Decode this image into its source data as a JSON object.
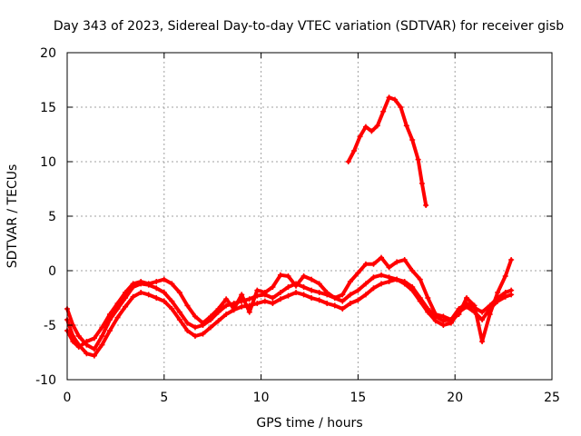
{
  "chart_data": {
    "type": "line",
    "title": "Day 343 of 2023, Sidereal Day-to-day VTEC variation (SDTVAR) for receiver gisb",
    "xlabel": "GPS time / hours",
    "ylabel": "SDTVAR / TECUs",
    "xlim": [
      0,
      25
    ],
    "ylim": [
      -10,
      20
    ],
    "xticks": [
      0,
      5,
      10,
      15,
      20,
      25
    ],
    "yticks": [
      -10,
      -5,
      0,
      5,
      10,
      15,
      20
    ],
    "xtick_labels": [
      "0",
      "5",
      "10",
      "15",
      "20",
      "25"
    ],
    "ytick_labels": [
      "-10",
      "-5",
      "0",
      "5",
      "10",
      "15",
      "20"
    ],
    "grid": true,
    "color": "#ff0000",
    "series": [
      {
        "name": "track-a",
        "x": [
          0,
          0.3,
          0.6,
          1.0,
          1.4,
          1.8,
          2.2,
          2.6,
          3.0,
          3.4,
          3.8,
          4.2,
          4.6,
          5.0,
          5.4,
          5.8,
          6.2,
          6.6,
          7.0,
          7.4,
          7.8,
          8.2,
          8.6,
          9.0,
          9.4,
          9.8,
          10.2,
          10.6,
          11.0,
          11.4,
          11.8,
          12.2,
          12.6,
          13.0,
          13.4,
          13.8,
          14.2,
          14.6,
          15.0,
          15.4,
          15.8,
          16.2,
          16.6,
          17.0,
          17.4,
          17.8,
          18.2,
          18.6,
          19.0,
          19.4,
          19.8,
          20.2,
          20.6,
          21.0,
          21.4,
          21.8,
          22.2,
          22.6,
          22.9
        ],
        "y": [
          -3.5,
          -5.0,
          -6.0,
          -6.8,
          -7.2,
          -6.0,
          -4.5,
          -3.5,
          -2.5,
          -1.5,
          -1.2,
          -1.3,
          -1.6,
          -2.0,
          -2.8,
          -3.8,
          -4.8,
          -5.2,
          -5.0,
          -4.5,
          -3.8,
          -3.2,
          -3.0,
          -2.8,
          -2.6,
          -2.3,
          -2.2,
          -2.5,
          -2.0,
          -1.5,
          -1.2,
          -1.5,
          -1.8,
          -2.0,
          -2.2,
          -2.5,
          -2.8,
          -2.2,
          -1.8,
          -1.2,
          -0.6,
          -0.4,
          -0.6,
          -0.8,
          -1.0,
          -1.5,
          -2.5,
          -3.5,
          -4.2,
          -4.6,
          -4.5,
          -3.5,
          -3.0,
          -3.4,
          -3.8,
          -3.2,
          -2.5,
          -2.0,
          -1.8
        ]
      },
      {
        "name": "track-b",
        "x": [
          0,
          0.3,
          0.6,
          1.0,
          1.4,
          1.8,
          2.2,
          2.6,
          3.0,
          3.4,
          3.8,
          4.2,
          4.6,
          5.0,
          5.4,
          5.8,
          6.2,
          6.6,
          7.0,
          7.4,
          7.8,
          8.2,
          8.6,
          9.0,
          9.4,
          9.8,
          10.2,
          10.6,
          11.0,
          11.4,
          11.8,
          12.2,
          12.6,
          13.0,
          13.4,
          13.8,
          14.2,
          14.6,
          15.0,
          15.4,
          15.8,
          16.2,
          16.6,
          17.0,
          17.4,
          17.8,
          18.2,
          18.6,
          19.0,
          19.4,
          19.8,
          20.2,
          20.6,
          21.0,
          21.4,
          21.8,
          22.2,
          22.6,
          22.9
        ],
        "y": [
          -4.5,
          -6.0,
          -6.8,
          -7.6,
          -7.8,
          -6.8,
          -5.5,
          -4.3,
          -3.3,
          -2.4,
          -2.0,
          -2.2,
          -2.5,
          -2.8,
          -3.5,
          -4.5,
          -5.5,
          -6.0,
          -5.8,
          -5.2,
          -4.6,
          -4.0,
          -3.6,
          -3.3,
          -3.2,
          -3.0,
          -2.8,
          -3.0,
          -2.6,
          -2.3,
          -2.0,
          -2.2,
          -2.5,
          -2.7,
          -3.0,
          -3.2,
          -3.5,
          -3.0,
          -2.7,
          -2.2,
          -1.6,
          -1.2,
          -1.0,
          -0.8,
          -1.2,
          -1.8,
          -2.8,
          -3.8,
          -4.6,
          -5.0,
          -4.8,
          -3.8,
          -3.3,
          -3.8,
          -4.5,
          -3.5,
          -2.8,
          -2.4,
          -2.2
        ]
      },
      {
        "name": "track-c",
        "x": [
          0,
          0.3,
          0.6,
          1.0,
          1.4,
          1.8,
          2.2,
          2.6,
          3.0,
          3.4,
          3.8,
          4.2,
          4.6,
          5.0,
          5.4,
          5.8,
          6.2,
          6.6,
          7.0,
          7.4,
          7.8,
          8.2,
          8.6,
          9.0,
          9.4,
          9.8,
          10.2,
          10.6,
          11.0,
          11.4,
          11.8,
          12.2,
          12.6,
          13.0,
          13.4,
          13.8,
          14.2,
          14.6,
          15.0,
          15.4,
          15.8,
          16.2,
          16.6,
          17.0,
          17.4,
          17.8,
          18.2,
          18.6,
          19.0,
          19.4,
          19.8,
          20.2,
          20.6,
          21.0,
          21.4,
          21.8,
          22.2,
          22.6,
          22.9
        ],
        "y": [
          -5.5,
          -6.5,
          -7.0,
          -6.5,
          -6.2,
          -5.2,
          -4.0,
          -3.0,
          -2.0,
          -1.2,
          -1.0,
          -1.2,
          -1.0,
          -0.8,
          -1.2,
          -2.0,
          -3.2,
          -4.2,
          -4.8,
          -4.2,
          -3.5,
          -2.6,
          -3.5,
          -2.2,
          -3.8,
          -1.8,
          -2.0,
          -1.5,
          -0.4,
          -0.5,
          -1.4,
          -0.5,
          -0.8,
          -1.2,
          -2.0,
          -2.5,
          -2.2,
          -1.0,
          -0.2,
          0.6,
          0.6,
          1.2,
          0.3,
          0.8,
          1.0,
          0.0,
          -0.8,
          -2.5,
          -4.0,
          -4.2,
          -4.5,
          -4.0,
          -2.5,
          -3.2,
          -6.5,
          -4.0,
          -2.0,
          -0.5,
          1.0
        ]
      },
      {
        "name": "track-d",
        "x": [
          14.5,
          14.8,
          15.1,
          15.4,
          15.7,
          16.0,
          16.3,
          16.6,
          16.9,
          17.2,
          17.5,
          17.8,
          18.1,
          18.3,
          18.5
        ],
        "y": [
          10.0,
          11.0,
          12.3,
          13.2,
          12.8,
          13.3,
          14.6,
          15.9,
          15.7,
          15.0,
          13.3,
          12.0,
          10.2,
          8.0,
          6.0
        ]
      }
    ]
  }
}
